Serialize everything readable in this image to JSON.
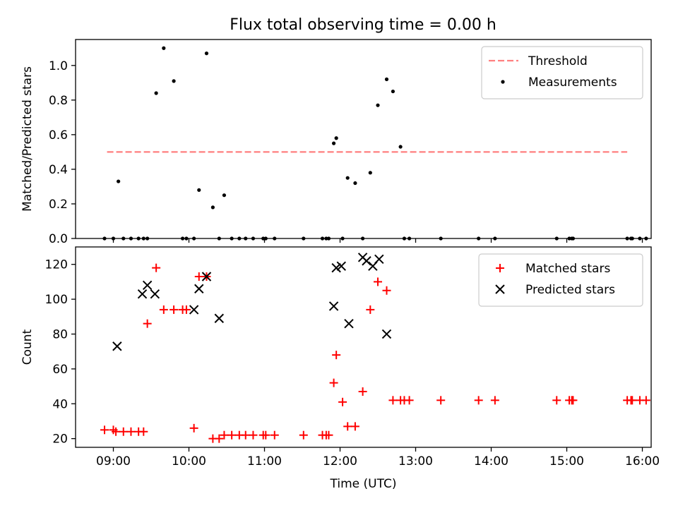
{
  "title": "Flux total observing time = 0.00 h",
  "chart_data": [
    {
      "type": "scatter",
      "ylabel": "Matched/Predicted stars",
      "xlim": [
        "08:30",
        "16:07"
      ],
      "ylim": [
        0,
        1.15
      ],
      "yticks": [
        0.0,
        0.2,
        0.4,
        0.6,
        0.8,
        1.0
      ],
      "ytick_labels": [
        "0.0",
        "0.2",
        "0.4",
        "0.6",
        "0.8",
        "1.0"
      ],
      "grid": false,
      "legend_position": "top-right",
      "threshold": {
        "name": "Threshold",
        "y": 0.5,
        "x_start": "08:55",
        "x_end": "15:48",
        "color": "#ff7f7f",
        "style": "dashed"
      },
      "series": [
        {
          "name": "Measurements",
          "marker": "dot",
          "color": "#000000",
          "x": [
            "08:53",
            "09:00",
            "09:04",
            "09:08",
            "09:14",
            "09:20",
            "09:24",
            "09:27",
            "09:34",
            "09:40",
            "09:48",
            "09:55",
            "09:58",
            "10:04",
            "10:08",
            "10:14",
            "10:19",
            "10:24",
            "10:28",
            "10:34",
            "10:40",
            "10:45",
            "10:51",
            "10:59",
            "11:01",
            "11:08",
            "11:31",
            "11:46",
            "11:49",
            "11:51",
            "11:55",
            "11:57",
            "12:02",
            "12:06",
            "12:12",
            "12:18",
            "12:24",
            "12:30",
            "12:37",
            "12:42",
            "12:48",
            "12:51",
            "12:55",
            "13:20",
            "13:50",
            "14:03",
            "14:52",
            "15:02",
            "15:04",
            "15:05",
            "15:48",
            "15:51",
            "15:52",
            "15:58",
            "16:03"
          ],
          "y": [
            0.0,
            0.0,
            0.33,
            0.0,
            0.0,
            0.0,
            0.0,
            0.0,
            0.84,
            1.1,
            0.91,
            0.0,
            0.0,
            0.0,
            0.28,
            1.07,
            0.18,
            0.0,
            0.25,
            0.0,
            0.0,
            0.0,
            0.0,
            0.0,
            0.0,
            0.0,
            0.0,
            0.0,
            0.0,
            0.0,
            0.55,
            0.58,
            0.0,
            0.35,
            0.32,
            0.0,
            0.38,
            0.77,
            0.92,
            0.85,
            0.53,
            0.0,
            0.0,
            0.0,
            0.0,
            0.0,
            0.0,
            0.0,
            0.0,
            0.0,
            0.0,
            0.0,
            0.0,
            0.0,
            0.0
          ]
        }
      ]
    },
    {
      "type": "scatter",
      "xlabel": "Time (UTC)",
      "ylabel": "Count",
      "xlim": [
        "08:30",
        "16:07"
      ],
      "ylim": [
        15,
        130
      ],
      "xticks": [
        "09:00",
        "10:00",
        "11:00",
        "12:00",
        "13:00",
        "14:00",
        "15:00",
        "16:00"
      ],
      "xtick_labels": [
        "09:00",
        "10:00",
        "11:00",
        "12:00",
        "13:00",
        "14:00",
        "15:00",
        "16:00"
      ],
      "yticks": [
        20,
        40,
        60,
        80,
        100,
        120
      ],
      "ytick_labels": [
        "20",
        "40",
        "60",
        "80",
        "100",
        "120"
      ],
      "grid": false,
      "legend_position": "top-right",
      "series": [
        {
          "name": "Matched stars",
          "marker": "plus",
          "color": "#ff0000",
          "x": [
            "08:53",
            "09:00",
            "09:02",
            "09:08",
            "09:14",
            "09:20",
            "09:24",
            "09:27",
            "09:34",
            "09:40",
            "09:48",
            "09:55",
            "09:58",
            "10:04",
            "10:08",
            "10:14",
            "10:19",
            "10:24",
            "10:28",
            "10:34",
            "10:40",
            "10:45",
            "10:51",
            "10:59",
            "11:01",
            "11:08",
            "11:31",
            "11:46",
            "11:49",
            "11:51",
            "11:55",
            "11:57",
            "12:02",
            "12:06",
            "12:12",
            "12:18",
            "12:24",
            "12:30",
            "12:37",
            "12:42",
            "12:48",
            "12:51",
            "12:55",
            "13:20",
            "13:50",
            "14:03",
            "14:52",
            "15:02",
            "15:04",
            "15:05",
            "15:48",
            "15:51",
            "15:52",
            "15:58",
            "16:03"
          ],
          "y": [
            25,
            25,
            24,
            24,
            24,
            24,
            24,
            86,
            118,
            94,
            94,
            94,
            94,
            26,
            113,
            113,
            20,
            20,
            22,
            22,
            22,
            22,
            22,
            22,
            22,
            22,
            22,
            22,
            22,
            22,
            52,
            68,
            41,
            27,
            27,
            47,
            94,
            110,
            105,
            42,
            42,
            42,
            42,
            42,
            42,
            42,
            42,
            42,
            42,
            42,
            42,
            42,
            42,
            42,
            42
          ]
        },
        {
          "name": "Predicted stars",
          "marker": "x",
          "color": "#000000",
          "x": [
            "09:03",
            "09:23",
            "09:27",
            "09:33",
            "10:04",
            "10:08",
            "10:14",
            "10:24",
            "11:55",
            "11:57",
            "12:01",
            "12:07",
            "12:18",
            "12:21",
            "12:26",
            "12:31",
            "12:37"
          ],
          "y": [
            73,
            103,
            108,
            103,
            94,
            106,
            113,
            89,
            96,
            118,
            119,
            86,
            124,
            122,
            119,
            123,
            80
          ]
        }
      ]
    }
  ]
}
